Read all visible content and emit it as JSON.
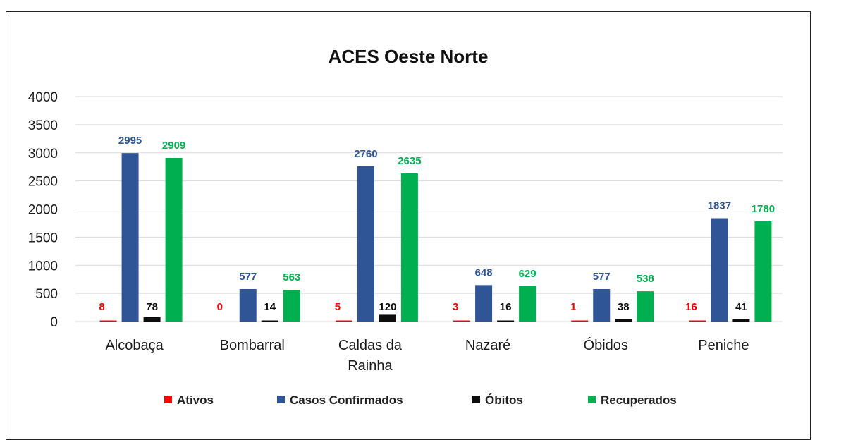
{
  "chart_data": {
    "type": "bar",
    "title": "ACES Oeste Norte",
    "categories": [
      [
        "Alcobaça"
      ],
      [
        "Bombarral"
      ],
      [
        "Caldas da",
        "Rainha"
      ],
      [
        "Nazaré"
      ],
      [
        "Óbidos"
      ],
      [
        "Peniche"
      ]
    ],
    "series": [
      {
        "name": "Ativos",
        "color": "#ff0000",
        "label_color": "#ff0000",
        "values": [
          8,
          0,
          5,
          3,
          1,
          16
        ]
      },
      {
        "name": "Casos Confirmados",
        "color": "#2f5597",
        "label_color": "#2f5597",
        "values": [
          2995,
          577,
          2760,
          648,
          577,
          1837
        ]
      },
      {
        "name": "Óbitos",
        "color": "#0d0d0d",
        "label_color": "#0d0d0d",
        "values": [
          78,
          14,
          120,
          16,
          38,
          41
        ]
      },
      {
        "name": "Recuperados",
        "color": "#00b050",
        "label_color": "#00b050",
        "values": [
          2909,
          563,
          2635,
          629,
          538,
          1780
        ]
      }
    ],
    "ylim": [
      0,
      4000
    ],
    "yticks": [
      0,
      500,
      1000,
      1500,
      2000,
      2500,
      3000,
      3500,
      4000
    ],
    "grid": true,
    "legend_position": "bottom"
  }
}
